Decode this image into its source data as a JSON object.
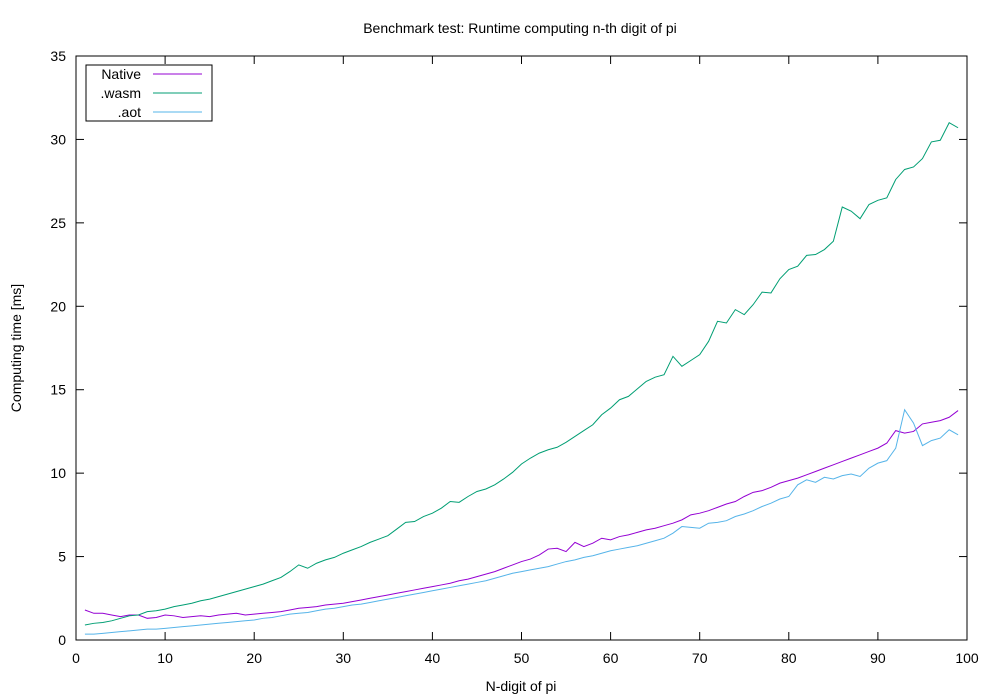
{
  "chart_data": {
    "type": "line",
    "title": "Benchmark test: Runtime computing n-th digit of pi",
    "xlabel": "N-digit of pi",
    "ylabel": "Computing time [ms]",
    "xlim": [
      0,
      100
    ],
    "ylim": [
      0,
      35
    ],
    "xticks": [
      0,
      10,
      20,
      30,
      40,
      50,
      60,
      70,
      80,
      90,
      100
    ],
    "yticks": [
      0,
      5,
      10,
      15,
      20,
      25,
      30,
      35
    ],
    "grid": false,
    "legend_position": "top-left",
    "x": [
      1,
      2,
      3,
      4,
      5,
      6,
      7,
      8,
      9,
      10,
      11,
      12,
      13,
      14,
      15,
      16,
      17,
      18,
      19,
      20,
      21,
      22,
      23,
      24,
      25,
      26,
      27,
      28,
      29,
      30,
      31,
      32,
      33,
      34,
      35,
      36,
      37,
      38,
      39,
      40,
      41,
      42,
      43,
      44,
      45,
      46,
      47,
      48,
      49,
      50,
      51,
      52,
      53,
      54,
      55,
      56,
      57,
      58,
      59,
      60,
      61,
      62,
      63,
      64,
      65,
      66,
      67,
      68,
      69,
      70,
      71,
      72,
      73,
      74,
      75,
      76,
      77,
      78,
      79,
      80,
      81,
      82,
      83,
      84,
      85,
      86,
      87,
      88,
      89,
      90,
      91,
      92,
      93,
      94,
      95,
      96,
      97,
      98,
      99
    ],
    "series": [
      {
        "name": "Native",
        "color": "#9400d3",
        "values": [
          1.8,
          1.6,
          1.6,
          1.5,
          1.4,
          1.5,
          1.5,
          1.3,
          1.35,
          1.5,
          1.45,
          1.35,
          1.4,
          1.45,
          1.4,
          1.5,
          1.55,
          1.6,
          1.5,
          1.55,
          1.6,
          1.65,
          1.7,
          1.8,
          1.9,
          1.95,
          2.0,
          2.1,
          2.15,
          2.2,
          2.3,
          2.4,
          2.5,
          2.6,
          2.7,
          2.8,
          2.9,
          3.0,
          3.1,
          3.2,
          3.3,
          3.4,
          3.55,
          3.65,
          3.8,
          3.95,
          4.1,
          4.3,
          4.5,
          4.7,
          4.85,
          5.1,
          5.45,
          5.5,
          5.3,
          5.85,
          5.6,
          5.8,
          6.1,
          6.0,
          6.2,
          6.3,
          6.45,
          6.6,
          6.7,
          6.85,
          7.0,
          7.2,
          7.5,
          7.6,
          7.75,
          7.95,
          8.15,
          8.3,
          8.6,
          8.85,
          8.95,
          9.15,
          9.4,
          9.55,
          9.7,
          9.9,
          10.1,
          10.3,
          10.5,
          10.7,
          10.9,
          11.1,
          11.3,
          11.5,
          11.8,
          12.55,
          12.4,
          12.5,
          12.95,
          13.05,
          13.15,
          13.35,
          13.75
        ]
      },
      {
        "name": ".wasm",
        "color": "#009e73",
        "values": [
          0.9,
          1.0,
          1.05,
          1.15,
          1.3,
          1.45,
          1.5,
          1.7,
          1.75,
          1.85,
          2.0,
          2.1,
          2.2,
          2.35,
          2.45,
          2.6,
          2.75,
          2.9,
          3.05,
          3.2,
          3.35,
          3.55,
          3.75,
          4.1,
          4.5,
          4.3,
          4.6,
          4.8,
          4.95,
          5.2,
          5.4,
          5.6,
          5.85,
          6.05,
          6.25,
          6.65,
          7.05,
          7.1,
          7.4,
          7.6,
          7.9,
          8.3,
          8.25,
          8.6,
          8.9,
          9.05,
          9.3,
          9.65,
          10.05,
          10.55,
          10.9,
          11.2,
          11.4,
          11.55,
          11.85,
          12.2,
          12.55,
          12.9,
          13.5,
          13.9,
          14.4,
          14.6,
          15.05,
          15.5,
          15.75,
          15.9,
          17.0,
          16.4,
          16.75,
          17.1,
          17.9,
          19.1,
          19.0,
          19.8,
          19.5,
          20.1,
          20.85,
          20.8,
          21.65,
          22.2,
          22.4,
          23.05,
          23.1,
          23.4,
          23.9,
          25.95,
          25.7,
          25.25,
          26.1,
          26.35,
          26.5,
          27.6,
          28.2,
          28.35,
          28.85,
          29.85,
          29.95,
          31.0,
          30.7
        ]
      },
      {
        "name": ".aot",
        "color": "#56b4e9",
        "values": [
          0.35,
          0.35,
          0.4,
          0.45,
          0.5,
          0.55,
          0.6,
          0.65,
          0.65,
          0.7,
          0.75,
          0.8,
          0.85,
          0.9,
          0.95,
          1.0,
          1.05,
          1.1,
          1.15,
          1.2,
          1.3,
          1.35,
          1.45,
          1.55,
          1.6,
          1.65,
          1.75,
          1.85,
          1.9,
          2.0,
          2.1,
          2.15,
          2.25,
          2.35,
          2.45,
          2.55,
          2.65,
          2.75,
          2.85,
          2.95,
          3.05,
          3.15,
          3.25,
          3.35,
          3.45,
          3.55,
          3.7,
          3.85,
          4.0,
          4.1,
          4.2,
          4.3,
          4.4,
          4.55,
          4.7,
          4.8,
          4.95,
          5.05,
          5.2,
          5.35,
          5.45,
          5.55,
          5.65,
          5.8,
          5.95,
          6.1,
          6.4,
          6.8,
          6.75,
          6.7,
          7.0,
          7.05,
          7.15,
          7.4,
          7.55,
          7.75,
          8.0,
          8.2,
          8.45,
          8.6,
          9.3,
          9.6,
          9.45,
          9.75,
          9.65,
          9.85,
          9.95,
          9.8,
          10.3,
          10.6,
          10.75,
          11.5,
          13.8,
          13.0,
          11.65,
          11.95,
          12.1,
          12.6,
          12.3
        ]
      }
    ]
  }
}
